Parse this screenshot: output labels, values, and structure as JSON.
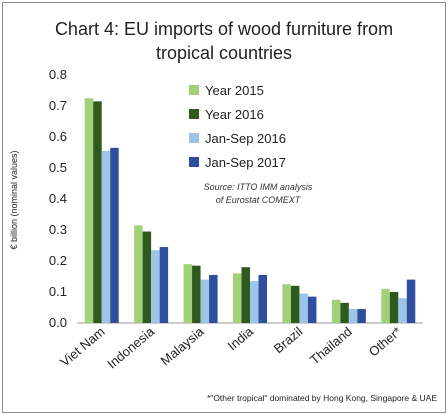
{
  "chart_data": {
    "type": "bar",
    "title_line1": "Chart 4: EU imports of wood furniture from",
    "title_line2": "tropical countries",
    "ylabel": "€ billion (nominal values)",
    "ylim": [
      0,
      0.8
    ],
    "yticks": [
      "0.0",
      "0.1",
      "0.2",
      "0.3",
      "0.4",
      "0.5",
      "0.6",
      "0.7",
      "0.8"
    ],
    "categories": [
      "Viet Nam",
      "Indonesia",
      "Malaysia",
      "India",
      "Brazil",
      "Thailand",
      "Other*"
    ],
    "series": [
      {
        "name": "Year 2015",
        "color": "#a3d17a",
        "values": [
          0.725,
          0.315,
          0.19,
          0.16,
          0.125,
          0.075,
          0.11
        ]
      },
      {
        "name": "Year 2016",
        "color": "#2f5a1e",
        "values": [
          0.715,
          0.295,
          0.185,
          0.18,
          0.12,
          0.065,
          0.1
        ]
      },
      {
        "name": "Jan-Sep 2016",
        "color": "#9ec4e8",
        "values": [
          0.555,
          0.235,
          0.14,
          0.135,
          0.095,
          0.045,
          0.08
        ]
      },
      {
        "name": "Jan-Sep 2017",
        "color": "#2f4f9e",
        "values": [
          0.565,
          0.245,
          0.155,
          0.155,
          0.085,
          0.045,
          0.14
        ]
      }
    ],
    "grid": false,
    "legend_position": "top-right",
    "source_line1": "Source: ITTO IMM analysis",
    "source_line2": "of Eurostat COMEXT",
    "footnote": "*\"Other tropical\" dominated by Hong Kong, Singapore & UAE"
  }
}
